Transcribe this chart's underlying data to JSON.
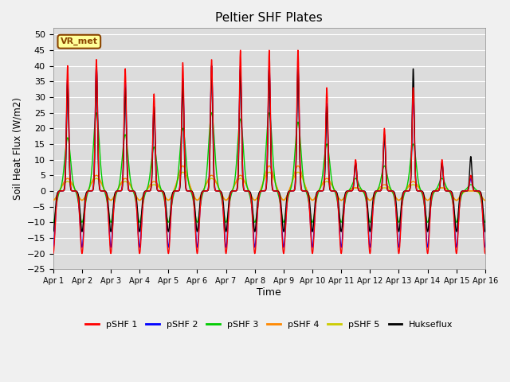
{
  "title": "Peltier SHF Plates",
  "xlabel": "Time",
  "ylabel": "Soil Heat Flux (W/m2)",
  "ylim": [
    -25,
    52
  ],
  "xlim": [
    0,
    15
  ],
  "xtick_labels": [
    "Apr 1",
    "Apr 2",
    "Apr 3",
    "Apr 4",
    "Apr 5",
    "Apr 6",
    "Apr 7",
    "Apr 8",
    "Apr 9",
    "Apr 10",
    "Apr 11",
    "Apr 12",
    "Apr 13",
    "Apr 14",
    "Apr 15",
    "Apr 16"
  ],
  "colors": {
    "pSHF1": "#FF0000",
    "pSHF2": "#0000FF",
    "pSHF3": "#00CC00",
    "pSHF4": "#FF8800",
    "pSHF5": "#CCCC00",
    "Hukseflux": "#000000"
  },
  "plot_bg": "#DCDCDC",
  "fig_bg": "#F0F0F0",
  "annotation_text": "VR_met",
  "annotation_color": "#8B4500",
  "annotation_bg": "#FFFF99",
  "day_peaks_pshf1": [
    40,
    42,
    39,
    31,
    41,
    42,
    45,
    45,
    45,
    33,
    10,
    20,
    33,
    10,
    5,
    2
  ],
  "day_peaks_pshf2": [
    36,
    40,
    35,
    27,
    36,
    40,
    40,
    40,
    40,
    28,
    9,
    18,
    30,
    9,
    4,
    1
  ],
  "day_peaks_pshf3": [
    17,
    25,
    18,
    14,
    20,
    25,
    23,
    25,
    22,
    15,
    4,
    8,
    15,
    4,
    2,
    0
  ],
  "day_peaks_pshf4": [
    4,
    5,
    4,
    3,
    8,
    5,
    5,
    8,
    8,
    4,
    1,
    2,
    3,
    1,
    0,
    0
  ],
  "day_peaks_pshf5": [
    3,
    4,
    3,
    2,
    6,
    4,
    4,
    6,
    6,
    3,
    1,
    1,
    2,
    1,
    0,
    0
  ],
  "day_peaks_hukse": [
    35,
    40,
    33,
    27,
    35,
    40,
    39,
    39,
    39,
    27,
    9,
    18,
    39,
    9,
    11,
    5
  ],
  "night_min_pshf1": -20,
  "night_min_pshf2": -18,
  "night_min_pshf3": -10,
  "night_min_pshf4": -3,
  "night_min_pshf5": -3,
  "night_min_hukse": -13
}
